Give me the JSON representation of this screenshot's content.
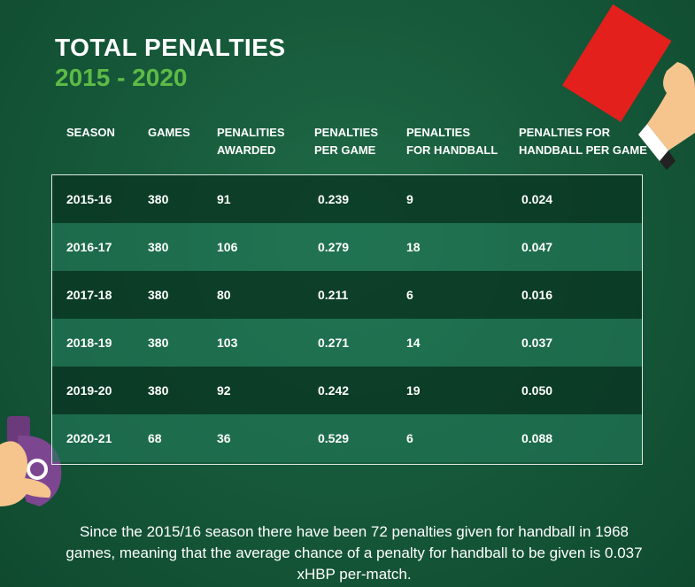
{
  "title": {
    "line1": "TOTAL PENALTIES",
    "line2": "2015 - 2020"
  },
  "chart_data": {
    "type": "table",
    "columns": [
      "SEASON",
      "GAMES",
      "PENALITIES AWARDED",
      "PENALTIES PER GAME",
      "PENALTIES FOR HANDBALL",
      "PENALTIES FOR HANDBALL PER GAME"
    ],
    "rows": [
      [
        "2015-16",
        "380",
        "91",
        "0.239",
        "9",
        "0.024"
      ],
      [
        "2016-17",
        "380",
        "106",
        "0.279",
        "18",
        "0.047"
      ],
      [
        "2017-18",
        "380",
        "80",
        "0.211",
        "6",
        "0.016"
      ],
      [
        "2018-19",
        "380",
        "103",
        "0.271",
        "14",
        "0.037"
      ],
      [
        "2019-20",
        "380",
        "92",
        "0.242",
        "19",
        "0.050"
      ],
      [
        "2020-21",
        "68",
        "36",
        "0.529",
        "6",
        "0.088"
      ]
    ]
  },
  "headers": [
    {
      "line1": "SEASON",
      "line2": ""
    },
    {
      "line1": "GAMES",
      "line2": ""
    },
    {
      "line1": "PENALITIES",
      "line2": "AWARDED"
    },
    {
      "line1": "PENALTIES",
      "line2": "PER GAME"
    },
    {
      "line1": "PENALTIES",
      "line2": "FOR HANDBALL"
    },
    {
      "line1": "PENALTIES FOR",
      "line2": "HANDBALL PER GAME"
    }
  ],
  "footnote": "Since the 2015/16 season there have been 72 penalties given for handball in 1968 games, meaning that the average chance of a penalty for handball to be given is 0.037 xHBP per-match.",
  "colors": {
    "background": "#175a3b",
    "accent_green": "#5dbb46",
    "card_red": "#e3201b",
    "whistle_purple": "#6a3a7a",
    "skin": "#f6c58e"
  },
  "icons": {
    "card": "red-card-icon",
    "whistle": "whistle-icon"
  }
}
